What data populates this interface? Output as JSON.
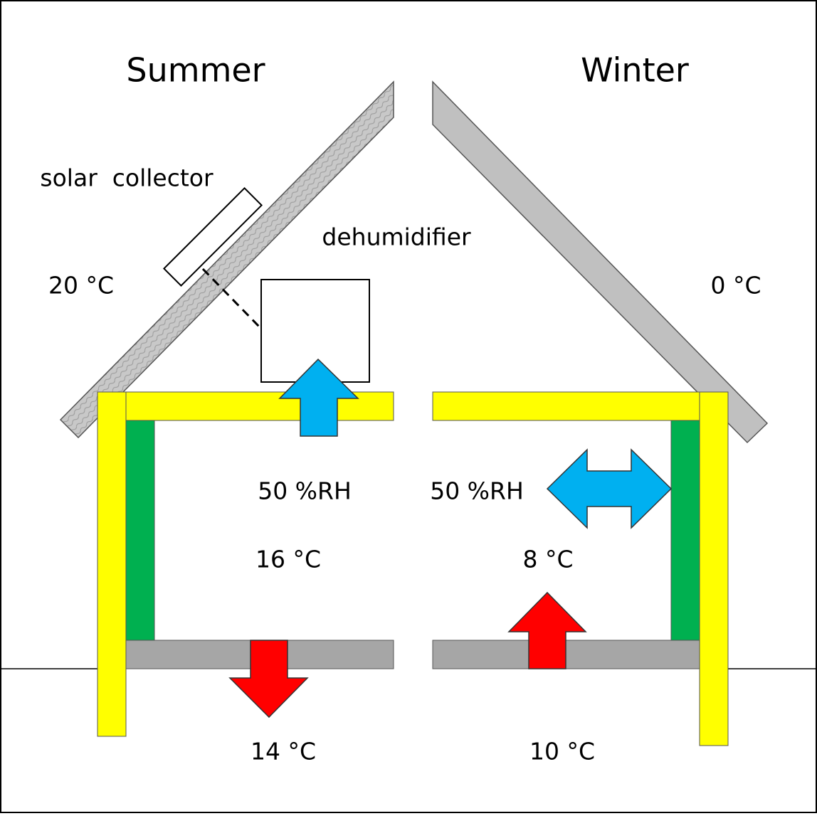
{
  "summer": {
    "title": "Summer",
    "outdoor_temp": "20 °C",
    "solar_collector": "solar  collector",
    "dehumidifier": "dehumidifier",
    "indoor_rh": "50 %RH",
    "indoor_temp": "16 °C",
    "ground_temp": "14 °C"
  },
  "winter": {
    "title": "Winter",
    "outdoor_temp": "0 °C",
    "indoor_rh": "50 %RH",
    "indoor_temp": "8 °C",
    "ground_temp": "10 °C"
  }
}
